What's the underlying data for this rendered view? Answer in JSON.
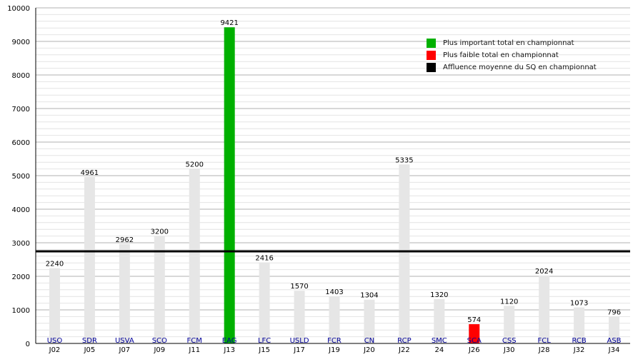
{
  "chart_data": {
    "type": "bar",
    "title": "",
    "xlabel": "",
    "ylabel": "",
    "ylim": [
      0,
      10000
    ],
    "yticks": [
      0,
      1000,
      2000,
      3000,
      4000,
      5000,
      6000,
      7000,
      8000,
      9000,
      10000
    ],
    "grid": true,
    "legend_position": "top-right",
    "categories": [
      "J02",
      "J05",
      "J07",
      "J09",
      "J11",
      "J13",
      "J15",
      "J17",
      "J19",
      "J20",
      "J22",
      "24",
      "J26",
      "J30",
      "J28",
      "J32",
      "J34"
    ],
    "teams": [
      "USO",
      "SDR",
      "USVA",
      "SCO",
      "FCM",
      "EAG",
      "LFC",
      "USLD",
      "FCR",
      "CN",
      "RCP",
      "SMC",
      "SCA",
      "CSS",
      "FCL",
      "RCB",
      "ASB"
    ],
    "values": [
      2240,
      4961,
      2962,
      3200,
      5200,
      9421,
      2416,
      1570,
      1403,
      1304,
      5335,
      1320,
      574,
      1120,
      2024,
      1073,
      796
    ],
    "highlight": {
      "max_index": 5,
      "min_index": 12
    },
    "average_line": 2744,
    "legend": [
      {
        "label": "Plus important total en championnat",
        "color": "#00b000"
      },
      {
        "label": "Plus faible total en championnat",
        "color": "#ff0000"
      },
      {
        "label": "Affluence moyenne du SQ en championnat",
        "color": "#000000"
      }
    ],
    "colors": {
      "bar": "#e6e6e6",
      "max": "#00b000",
      "min": "#ff0000",
      "average": "#000000",
      "team_label": "#000099",
      "grid_major": "#b0b0b0",
      "grid_minor": "#e4e4e4"
    }
  }
}
